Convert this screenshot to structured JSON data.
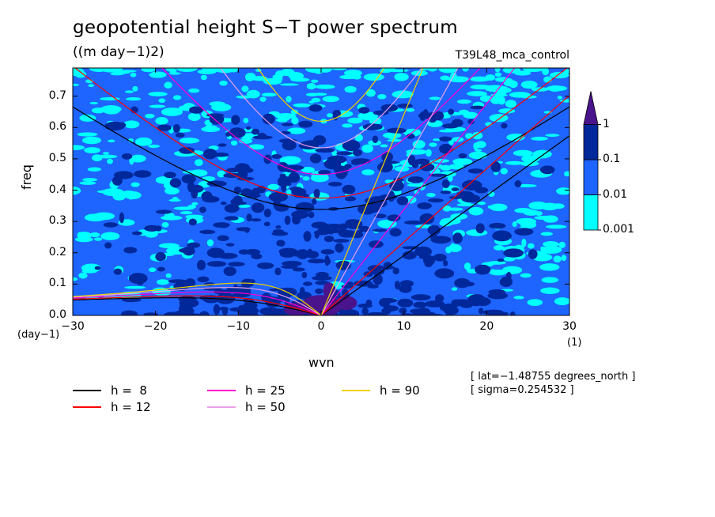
{
  "chart_data": {
    "type": "heatmap",
    "title": "geopotential height S−T power spectrum",
    "units": "((m day−1)2)",
    "experiment": "T39L48_mca_control",
    "xlabel": "wvn",
    "ylabel": "freq",
    "x_unit": "(1)",
    "y_unit": "(day−1)",
    "xlim": [
      -30,
      30
    ],
    "ylim": [
      0,
      0.79
    ],
    "x_ticks": [
      "−30",
      "−20",
      "−10",
      "0",
      "10",
      "20",
      "30"
    ],
    "x_tick_values": [
      -30,
      -20,
      -10,
      0,
      10,
      20,
      30
    ],
    "y_ticks": [
      "0.0",
      "0.1",
      "0.2",
      "0.3",
      "0.4",
      "0.5",
      "0.6",
      "0.7"
    ],
    "y_tick_values": [
      0,
      0.1,
      0.2,
      0.3,
      0.4,
      0.5,
      0.6,
      0.7
    ],
    "colorbar": {
      "labels": [
        "1",
        "0.1",
        "0.01",
        "0.001"
      ],
      "colors": [
        "#00ffff",
        "#1e64ff",
        "#00289a",
        "#4a148c"
      ]
    },
    "dispersion_curves": [
      {
        "label": "h =  8",
        "color": "#000000"
      },
      {
        "label": "h = 12",
        "color": "#ff0000"
      },
      {
        "label": "h = 25",
        "color": "#ff00d0"
      },
      {
        "label": "h = 50",
        "color": "#e8a0e8"
      },
      {
        "label": "h = 90",
        "color": "#f0d000"
      }
    ],
    "annotations": [
      "[ lat=−1.48755 degrees_north ]",
      "[ sigma=0.254532 ]"
    ]
  }
}
